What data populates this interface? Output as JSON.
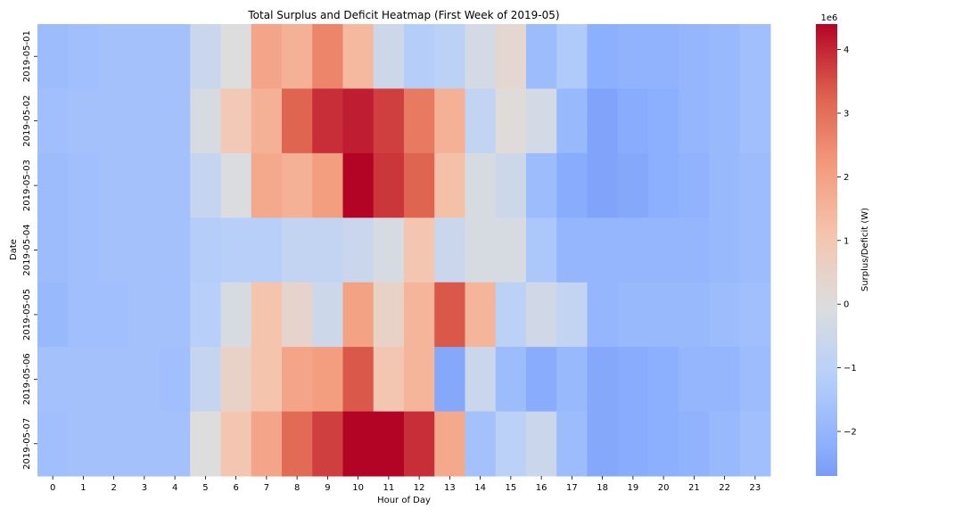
{
  "chart_data": {
    "type": "heatmap",
    "title": "Total Surplus and Deficit Heatmap (First Week of 2019-05)",
    "xlabel": "Hour of Day",
    "ylabel": "Date",
    "x_categories": [
      "0",
      "1",
      "2",
      "3",
      "4",
      "5",
      "6",
      "7",
      "8",
      "9",
      "10",
      "11",
      "12",
      "13",
      "14",
      "15",
      "16",
      "17",
      "18",
      "19",
      "20",
      "21",
      "22",
      "23"
    ],
    "y_categories": [
      "2019-05-01",
      "2019-05-02",
      "2019-05-03",
      "2019-05-04",
      "2019-05-05",
      "2019-05-06",
      "2019-05-07"
    ],
    "values": [
      [
        -1.8,
        -1.7,
        -1.6,
        -1.6,
        -1.6,
        -0.6,
        0.0,
        1.9,
        1.6,
        2.6,
        1.4,
        -0.5,
        -1.2,
        -1.0,
        -0.3,
        0.3,
        -1.8,
        -1.3,
        -2.2,
        -2.1,
        -2.1,
        -2.0,
        -1.9,
        -1.7
      ],
      [
        -1.7,
        -1.6,
        -1.6,
        -1.6,
        -1.6,
        -0.2,
        0.9,
        1.6,
        3.2,
        3.9,
        4.1,
        3.7,
        2.8,
        1.6,
        -0.8,
        0.1,
        -0.3,
        -1.9,
        -2.5,
        -2.3,
        -2.2,
        -2.0,
        -1.9,
        -1.7
      ],
      [
        -1.8,
        -1.7,
        -1.6,
        -1.6,
        -1.6,
        -0.7,
        -0.1,
        1.8,
        1.6,
        2.1,
        4.4,
        3.8,
        3.2,
        1.2,
        -0.2,
        -0.5,
        -1.8,
        -2.3,
        -2.5,
        -2.4,
        -2.2,
        -2.1,
        -1.9,
        -1.8
      ],
      [
        -1.8,
        -1.7,
        -1.6,
        -1.6,
        -1.6,
        -1.2,
        -1.1,
        -1.1,
        -0.8,
        -0.8,
        -0.6,
        -0.2,
        1.0,
        -0.6,
        -0.2,
        -0.2,
        -1.4,
        -2.0,
        -2.0,
        -2.0,
        -2.0,
        -2.0,
        -1.9,
        -1.8
      ],
      [
        -1.9,
        -1.7,
        -1.7,
        -1.6,
        -1.6,
        -1.1,
        -0.2,
        1.1,
        0.4,
        -0.5,
        2.0,
        0.5,
        1.5,
        3.4,
        1.5,
        -1.0,
        -0.4,
        -0.8,
        -2.0,
        -1.9,
        -1.9,
        -1.9,
        -1.8,
        -1.7
      ],
      [
        -1.6,
        -1.6,
        -1.6,
        -1.6,
        -1.7,
        -0.7,
        0.5,
        1.1,
        1.9,
        2.1,
        3.4,
        1.0,
        1.5,
        -2.4,
        -0.6,
        -1.8,
        -2.3,
        -1.9,
        -2.4,
        -2.3,
        -2.2,
        -2.0,
        -2.0,
        -1.8
      ],
      [
        -1.7,
        -1.6,
        -1.6,
        -1.6,
        -1.6,
        0.0,
        1.0,
        1.9,
        3.1,
        3.7,
        4.5,
        4.5,
        3.9,
        1.8,
        -1.6,
        -1.0,
        -0.6,
        -1.8,
        -2.4,
        -2.3,
        -2.2,
        -2.1,
        -1.9,
        -1.7
      ]
    ],
    "scale_note": "1e6",
    "vmin": -2.7,
    "vmax": 4.4,
    "colormap": "coolwarm",
    "colorbar": {
      "label": "Surplus/Deficit (W)",
      "exponent_label": "1e6",
      "ticks": [
        -2,
        -1,
        0,
        1,
        2,
        3,
        4
      ]
    },
    "grid": false,
    "legend": "colorbar-right"
  }
}
